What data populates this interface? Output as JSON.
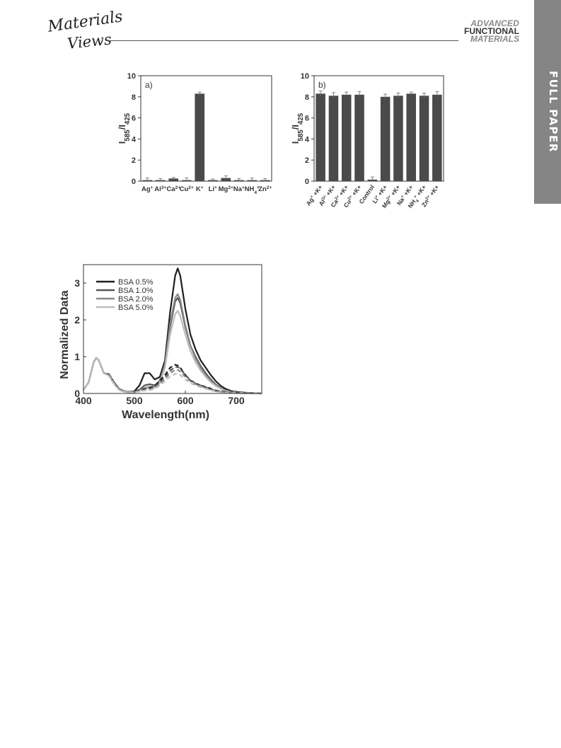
{
  "header": {
    "publisher_line1": "Materials",
    "publisher_line2": "Views",
    "journal_line1": "ADVANCED",
    "journal_line2": "FUNCTIONAL",
    "journal_line3": "MATERIALS",
    "side_tab": "FULL PAPER"
  },
  "chart_data": [
    {
      "type": "bar",
      "panel_label": "a)",
      "ylabel": "I585/I425",
      "ylim": [
        0,
        10
      ],
      "yticks": [
        0,
        2,
        4,
        6,
        8,
        10
      ],
      "categories": [
        "Ag+",
        "Al3+",
        "Ca2+",
        "Cu2+",
        "K+",
        "Li+",
        "Mg2+",
        "Na+",
        "NH4+",
        "Zn2+"
      ],
      "values": [
        0.1,
        0.1,
        0.25,
        0.1,
        8.3,
        0.1,
        0.3,
        0.1,
        0.1,
        0.1
      ],
      "errors": [
        0.2,
        0.15,
        0.1,
        0.2,
        0.15,
        0.1,
        0.2,
        0.15,
        0.2,
        0.15
      ],
      "bar_color": "#4a4a4a"
    },
    {
      "type": "bar",
      "panel_label": "b)",
      "ylabel": "I585/I425",
      "ylim": [
        0,
        10
      ],
      "yticks": [
        0,
        2,
        4,
        6,
        8,
        10
      ],
      "categories": [
        "Ag+ +K+",
        "Al3+ +K+",
        "Ca2+ +K+",
        "Cu2+ +K+",
        "Control",
        "Li+ +K+",
        "Mg2+ +K+",
        "Na+ +K+",
        "NH4+ +K+",
        "Zn2+ +K+"
      ],
      "values": [
        8.3,
        8.1,
        8.2,
        8.2,
        0.15,
        8.0,
        8.1,
        8.3,
        8.1,
        8.2
      ],
      "errors": [
        0.25,
        0.3,
        0.25,
        0.3,
        0.25,
        0.25,
        0.25,
        0.15,
        0.25,
        0.3
      ],
      "bar_color": "#4a4a4a"
    },
    {
      "type": "line",
      "xlabel": "Wavelength(nm)",
      "ylabel": "Normalized Data",
      "xlim": [
        400,
        750
      ],
      "ylim": [
        0,
        3.5
      ],
      "xticks": [
        400,
        500,
        600,
        700
      ],
      "yticks": [
        0,
        1,
        2,
        3
      ],
      "legend_position": "top-left",
      "series": [
        {
          "name": "BSA 0.5%",
          "color": "#1e1e1e",
          "style": "solid",
          "x": [
            400,
            410,
            420,
            425,
            430,
            440,
            450,
            460,
            470,
            480,
            490,
            500,
            510,
            520,
            530,
            540,
            550,
            560,
            570,
            580,
            585,
            590,
            600,
            610,
            620,
            630,
            640,
            650,
            660,
            670,
            680,
            690,
            700,
            720,
            750
          ],
          "y": [
            0.1,
            0.3,
            0.85,
            0.97,
            0.9,
            0.55,
            0.52,
            0.3,
            0.12,
            0.06,
            0.04,
            0.06,
            0.22,
            0.55,
            0.55,
            0.38,
            0.45,
            0.9,
            2.2,
            3.2,
            3.4,
            3.2,
            2.3,
            1.6,
            1.2,
            0.9,
            0.7,
            0.5,
            0.33,
            0.2,
            0.12,
            0.07,
            0.04,
            0.02,
            0.0
          ]
        },
        {
          "name": "BSA 1.0%",
          "color": "#555555",
          "style": "solid",
          "x": [
            400,
            410,
            420,
            425,
            430,
            440,
            450,
            460,
            470,
            480,
            490,
            500,
            510,
            520,
            530,
            540,
            550,
            560,
            570,
            580,
            585,
            590,
            600,
            610,
            620,
            630,
            640,
            650,
            660,
            670,
            680,
            690,
            700,
            720,
            750
          ],
          "y": [
            0.1,
            0.3,
            0.85,
            0.97,
            0.9,
            0.55,
            0.5,
            0.28,
            0.1,
            0.05,
            0.03,
            0.04,
            0.1,
            0.22,
            0.25,
            0.22,
            0.35,
            0.8,
            1.8,
            2.5,
            2.6,
            2.45,
            1.8,
            1.3,
            1.0,
            0.75,
            0.55,
            0.38,
            0.24,
            0.14,
            0.08,
            0.05,
            0.03,
            0.01,
            0.0
          ]
        },
        {
          "name": "BSA 2.0%",
          "color": "#888888",
          "style": "solid",
          "x": [
            400,
            410,
            420,
            425,
            430,
            440,
            450,
            460,
            470,
            480,
            490,
            500,
            510,
            520,
            530,
            540,
            550,
            560,
            570,
            580,
            585,
            590,
            600,
            610,
            620,
            630,
            640,
            650,
            660,
            670,
            680,
            690,
            700,
            720,
            750
          ],
          "y": [
            0.1,
            0.3,
            0.85,
            0.97,
            0.9,
            0.55,
            0.5,
            0.28,
            0.1,
            0.05,
            0.03,
            0.04,
            0.08,
            0.15,
            0.18,
            0.18,
            0.32,
            0.78,
            1.9,
            2.6,
            2.7,
            2.55,
            1.85,
            1.3,
            0.95,
            0.7,
            0.5,
            0.34,
            0.22,
            0.13,
            0.07,
            0.04,
            0.02,
            0.01,
            0.0
          ]
        },
        {
          "name": "BSA 5.0%",
          "color": "#bdbdbd",
          "style": "solid",
          "x": [
            400,
            410,
            420,
            425,
            430,
            440,
            450,
            460,
            470,
            480,
            490,
            500,
            510,
            520,
            530,
            540,
            550,
            560,
            570,
            580,
            585,
            590,
            600,
            610,
            620,
            630,
            640,
            650,
            660,
            670,
            680,
            690,
            700,
            720,
            750
          ],
          "y": [
            0.1,
            0.3,
            0.85,
            0.97,
            0.9,
            0.55,
            0.48,
            0.26,
            0.1,
            0.05,
            0.03,
            0.04,
            0.07,
            0.12,
            0.15,
            0.15,
            0.28,
            0.7,
            1.6,
            2.15,
            2.25,
            2.1,
            1.6,
            1.15,
            0.85,
            0.62,
            0.45,
            0.3,
            0.2,
            0.12,
            0.07,
            0.04,
            0.02,
            0.01,
            0.0
          ]
        },
        {
          "color": "#1e1e1e",
          "style": "dashed",
          "x": [
            400,
            410,
            420,
            425,
            430,
            440,
            450,
            460,
            470,
            480,
            490,
            500,
            510,
            520,
            530,
            540,
            550,
            560,
            570,
            580,
            585,
            590,
            600,
            610,
            620,
            630,
            640,
            650,
            660,
            680,
            700,
            750
          ],
          "y": [
            0.1,
            0.3,
            0.85,
            0.97,
            0.9,
            0.55,
            0.52,
            0.3,
            0.12,
            0.06,
            0.04,
            0.05,
            0.08,
            0.12,
            0.15,
            0.2,
            0.35,
            0.5,
            0.7,
            0.78,
            0.76,
            0.7,
            0.5,
            0.35,
            0.27,
            0.22,
            0.18,
            0.13,
            0.08,
            0.04,
            0.02,
            0.0
          ]
        },
        {
          "color": "#555555",
          "style": "dashed",
          "x": [
            400,
            410,
            420,
            425,
            430,
            440,
            450,
            460,
            470,
            480,
            490,
            500,
            510,
            520,
            530,
            540,
            550,
            560,
            570,
            580,
            585,
            590,
            600,
            610,
            620,
            630,
            640,
            650,
            660,
            680,
            700,
            750
          ],
          "y": [
            0.1,
            0.3,
            0.85,
            0.97,
            0.9,
            0.55,
            0.5,
            0.28,
            0.1,
            0.05,
            0.03,
            0.04,
            0.07,
            0.1,
            0.12,
            0.18,
            0.3,
            0.45,
            0.62,
            0.72,
            0.72,
            0.68,
            0.5,
            0.36,
            0.28,
            0.22,
            0.17,
            0.12,
            0.07,
            0.03,
            0.01,
            0.0
          ]
        },
        {
          "color": "#888888",
          "style": "dashed",
          "x": [
            400,
            410,
            420,
            425,
            430,
            440,
            450,
            460,
            470,
            480,
            490,
            500,
            510,
            520,
            530,
            540,
            550,
            560,
            570,
            580,
            585,
            590,
            600,
            610,
            620,
            630,
            640,
            650,
            660,
            680,
            700,
            750
          ],
          "y": [
            0.1,
            0.3,
            0.85,
            0.97,
            0.9,
            0.55,
            0.5,
            0.28,
            0.1,
            0.05,
            0.03,
            0.04,
            0.06,
            0.09,
            0.1,
            0.15,
            0.26,
            0.4,
            0.55,
            0.64,
            0.64,
            0.6,
            0.45,
            0.33,
            0.25,
            0.2,
            0.15,
            0.1,
            0.06,
            0.03,
            0.01,
            0.0
          ]
        },
        {
          "color": "#bdbdbd",
          "style": "dashed",
          "x": [
            400,
            410,
            420,
            425,
            430,
            440,
            450,
            460,
            470,
            480,
            490,
            500,
            510,
            520,
            530,
            540,
            550,
            560,
            570,
            580,
            585,
            590,
            600,
            610,
            620,
            630,
            640,
            650,
            660,
            680,
            700,
            750
          ],
          "y": [
            0.1,
            0.3,
            0.85,
            0.97,
            0.9,
            0.55,
            0.48,
            0.26,
            0.1,
            0.05,
            0.03,
            0.04,
            0.05,
            0.08,
            0.09,
            0.13,
            0.22,
            0.34,
            0.46,
            0.53,
            0.53,
            0.5,
            0.38,
            0.28,
            0.22,
            0.17,
            0.13,
            0.09,
            0.05,
            0.02,
            0.01,
            0.0
          ]
        }
      ]
    }
  ]
}
